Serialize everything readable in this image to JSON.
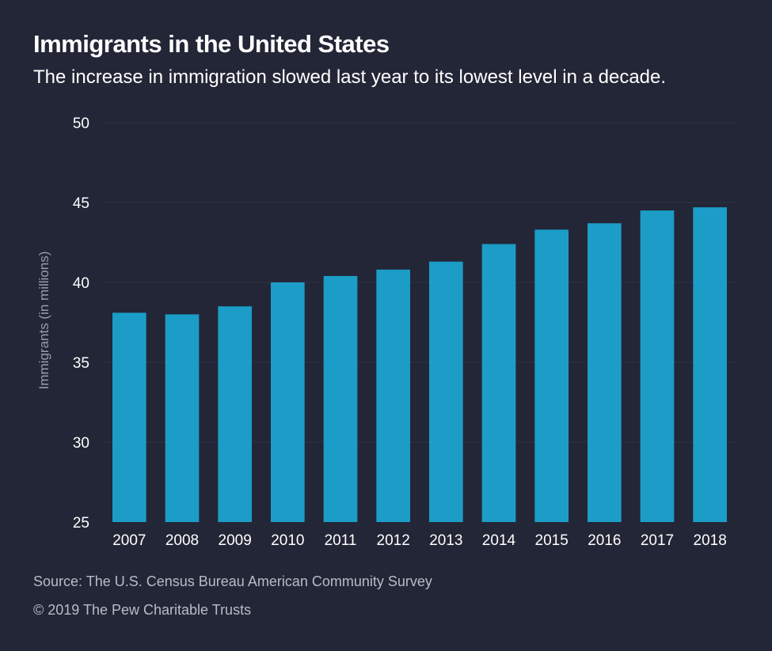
{
  "header": {
    "title": "Immigrants in the United States",
    "subtitle": "The increase in immigration slowed last year to its lowest level in a decade."
  },
  "chart_data": {
    "type": "bar",
    "title": "Immigrants in the United States",
    "subtitle": "The increase in immigration slowed last year to its lowest level in a decade.",
    "xlabel": "",
    "ylabel": "Immigrants (in millions)",
    "categories": [
      "2007",
      "2008",
      "2009",
      "2010",
      "2011",
      "2012",
      "2013",
      "2014",
      "2015",
      "2016",
      "2017",
      "2018"
    ],
    "values": [
      38.1,
      38.0,
      38.5,
      40.0,
      40.4,
      40.8,
      41.3,
      42.4,
      43.3,
      43.7,
      44.5,
      44.7
    ],
    "ylim": [
      25,
      50
    ],
    "yticks": [
      25,
      30,
      35,
      40,
      45,
      50
    ],
    "grid": true,
    "bar_color": "#1b9dc8"
  },
  "footer": {
    "source": "Source: The U.S. Census Bureau American Community Survey",
    "copyright": "© 2019 The Pew Charitable Trusts"
  },
  "colors": {
    "background": "#232636",
    "bar": "#1b9dc8",
    "gridline": "#2e3244",
    "text": "#ffffff",
    "muted_text": "#b9bcc6"
  }
}
